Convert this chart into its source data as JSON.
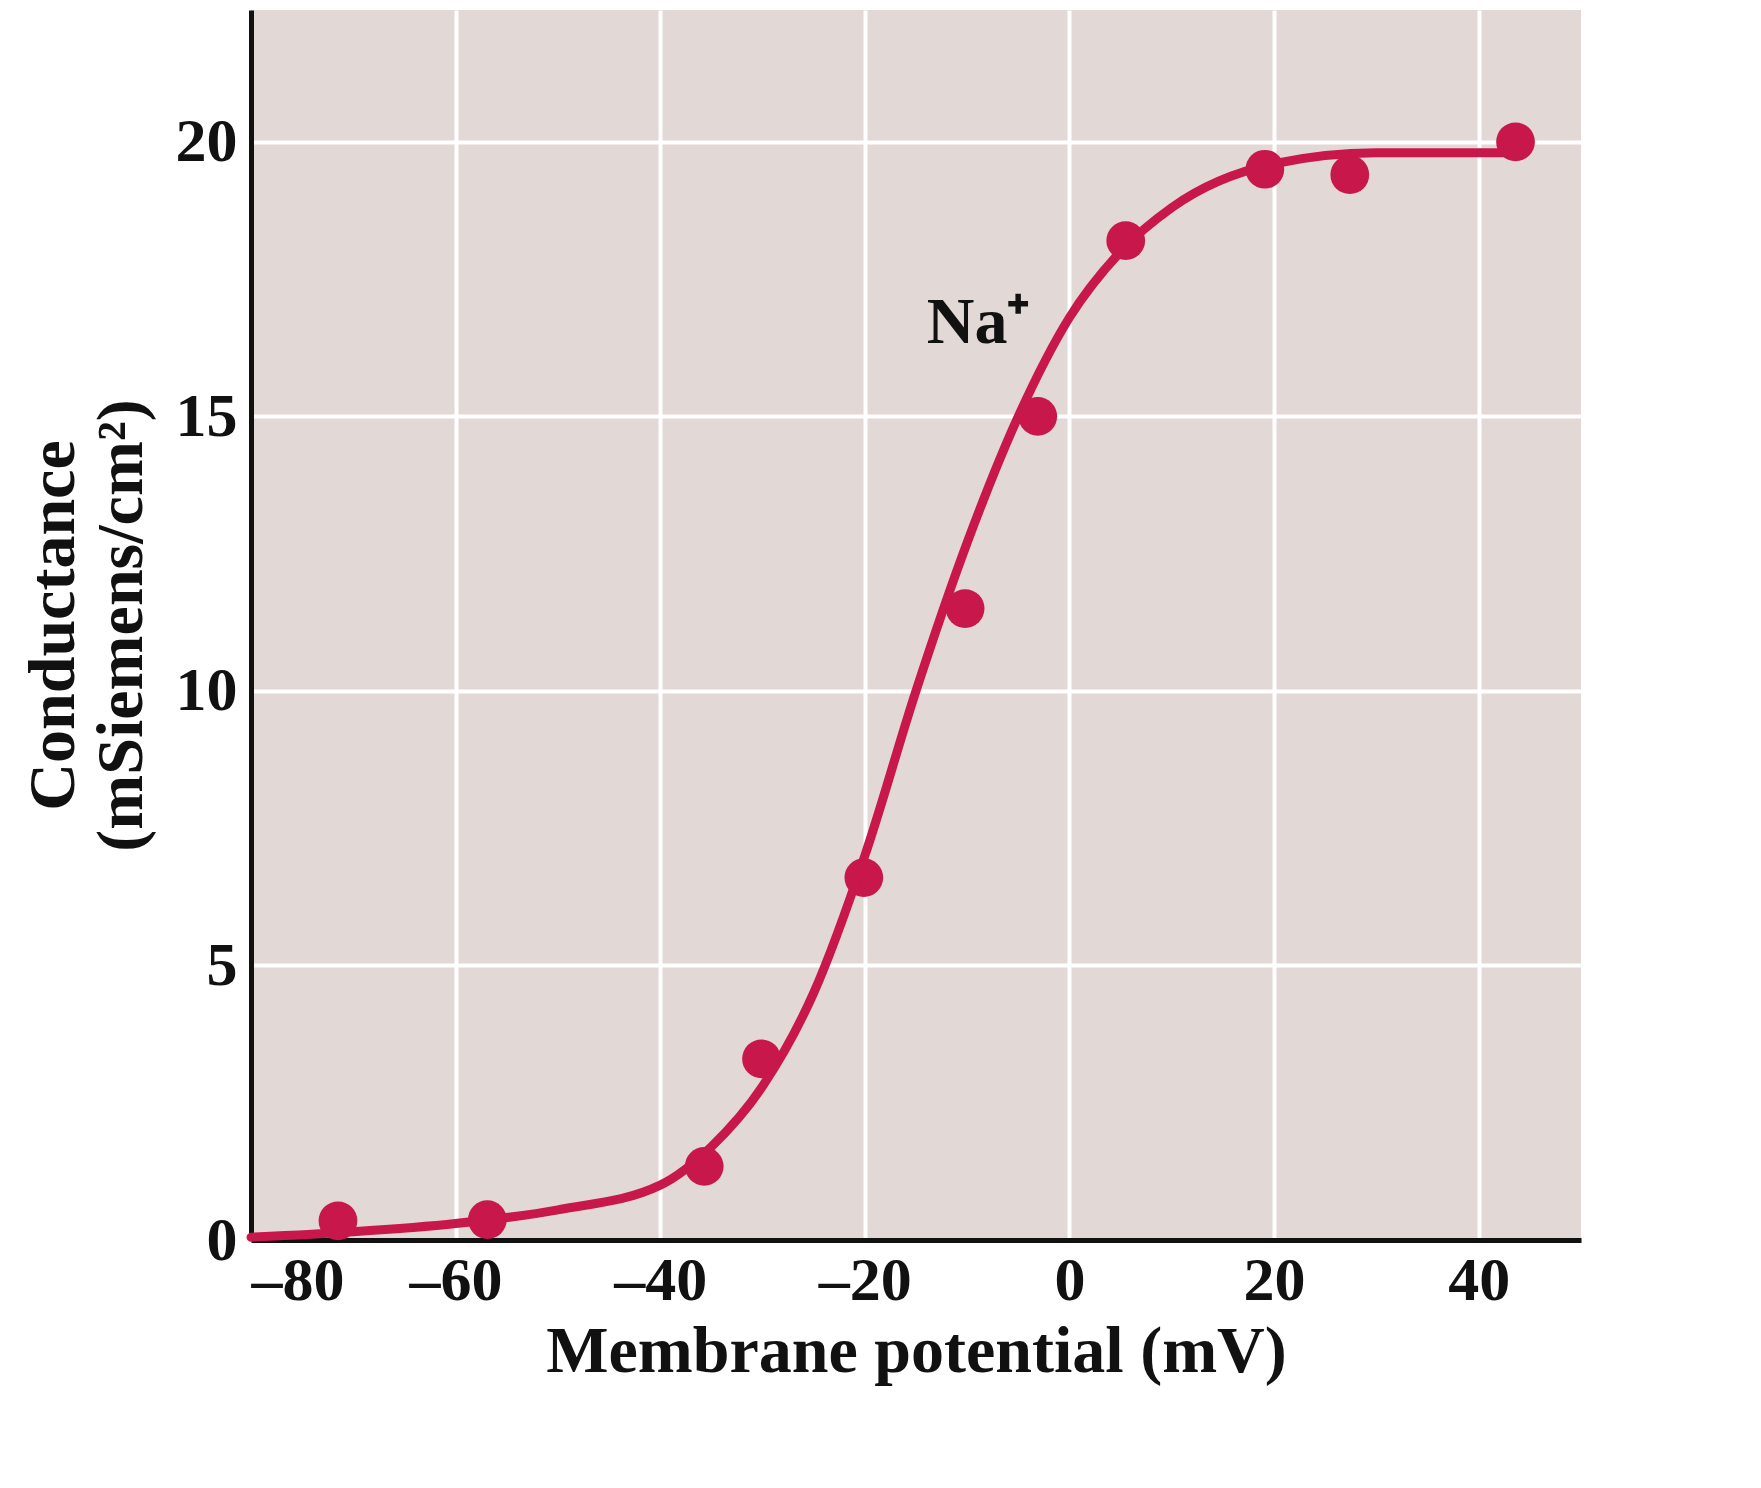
{
  "chart_data": {
    "type": "scatter",
    "xlabel": "Membrane potential (mV)",
    "ylabel": "Conductance\n(mSiemens/cm²)",
    "xlim": [
      -80,
      50
    ],
    "ylim": [
      0,
      22.4
    ],
    "xticks": [
      {
        "value": -80,
        "label": "–80"
      },
      {
        "value": -60,
        "label": "–60"
      },
      {
        "value": -40,
        "label": "–40"
      },
      {
        "value": -20,
        "label": "–20"
      },
      0,
      20,
      40
    ],
    "yticks": [
      0,
      5,
      10,
      15,
      20
    ],
    "grid": true,
    "series": [
      {
        "marker": "circle",
        "color": "#c8174a",
        "x": [
          -71.5,
          -56.9,
          -35.7,
          -30.1,
          -20.1,
          -10.2,
          -3.1,
          5.5,
          19.1,
          27.4,
          43.6
        ],
        "values": [
          0.35,
          0.37,
          1.34,
          3.3,
          6.6,
          11.5,
          15.0,
          18.2,
          19.5,
          19.4,
          20.0
        ]
      },
      {
        "type": "line",
        "name": "Na⁺",
        "marker": "none",
        "color": "#c8174a",
        "x": [
          -80,
          -70,
          -60,
          -50,
          -40,
          -35,
          -30,
          -25,
          -20,
          -15,
          -10,
          -5,
          0,
          5,
          10,
          20,
          30,
          44
        ],
        "values": [
          0.05,
          0.15,
          0.3,
          0.55,
          1.0,
          1.7,
          2.8,
          4.5,
          7.0,
          10.0,
          12.7,
          15.0,
          16.8,
          18.0,
          18.8,
          19.6,
          19.8,
          19.8
        ]
      }
    ]
  }
}
